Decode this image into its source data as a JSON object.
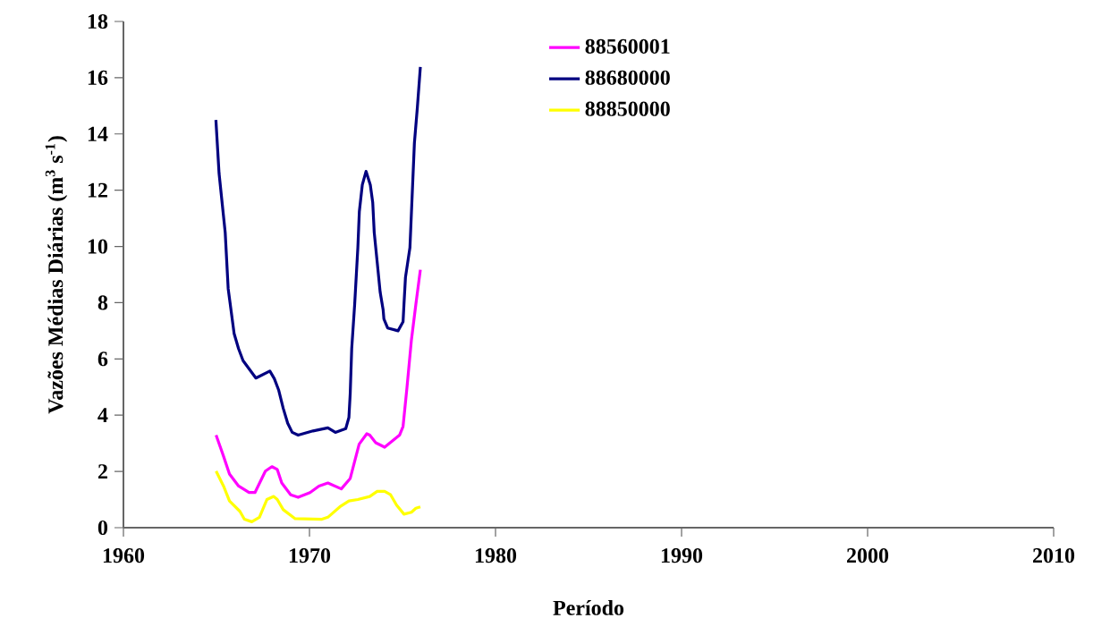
{
  "chart_data": {
    "type": "line",
    "xlabel": "Período",
    "ylabel": "Vazões Médias Diárias (m$^{3}$ s$^{-1}$)",
    "xlim": [
      1960,
      2010
    ],
    "xticks": [
      1960,
      1970,
      1980,
      1990,
      2000,
      2010
    ],
    "ylim": [
      0,
      18
    ],
    "yticks": [
      0,
      2,
      4,
      6,
      8,
      10,
      12,
      14,
      16,
      18
    ],
    "grid": false,
    "legend": "top",
    "marker": "none",
    "line_style": "solid",
    "series": [
      {
        "name": "88560001",
        "color": "#ff00ff",
        "x": [
          1964.98,
          1965.38,
          1965.7,
          1966.19,
          1966.75,
          1967.07,
          1967.63,
          1967.98,
          1968.27,
          1968.51,
          1968.99,
          1969.39,
          1970.03,
          1970.51,
          1970.99,
          1971.71,
          1972.19,
          1972.67,
          1973.08,
          1973.24,
          1973.56,
          1974.04,
          1974.84,
          1975.03,
          1975.24,
          1975.48,
          1975.72,
          1975.96
        ],
        "values": [
          3.29,
          2.54,
          1.91,
          1.48,
          1.25,
          1.25,
          2.01,
          2.17,
          2.07,
          1.59,
          1.17,
          1.08,
          1.25,
          1.48,
          1.59,
          1.38,
          1.75,
          2.97,
          3.34,
          3.29,
          3.02,
          2.86,
          3.29,
          3.6,
          4.98,
          6.68,
          7.95,
          9.17
        ]
      },
      {
        "name": "88680000",
        "color": "#000080",
        "x": [
          1964.97,
          1965.14,
          1965.47,
          1965.63,
          1965.87,
          1965.95,
          1966.19,
          1966.43,
          1967.12,
          1967.87,
          1968.11,
          1968.35,
          1968.59,
          1968.83,
          1969.07,
          1969.39,
          1970.19,
          1970.99,
          1971.39,
          1971.95,
          1972.12,
          1972.19,
          1972.27,
          1972.43,
          1972.6,
          1972.68,
          1972.84,
          1973.04,
          1973.27,
          1973.4,
          1973.48,
          1973.64,
          1973.8,
          1973.96,
          1974.0,
          1974.2,
          1974.76,
          1975.03,
          1975.08,
          1975.16,
          1975.4,
          1975.64,
          1975.8,
          1975.96
        ],
        "values": [
          14.5,
          12.6,
          10.5,
          8.5,
          7.3,
          6.9,
          6.36,
          5.94,
          5.32,
          5.57,
          5.3,
          4.88,
          4.24,
          3.71,
          3.39,
          3.29,
          3.44,
          3.55,
          3.39,
          3.52,
          3.92,
          4.77,
          6.36,
          7.95,
          9.96,
          11.24,
          12.19,
          12.67,
          12.19,
          11.56,
          10.5,
          9.44,
          8.37,
          7.74,
          7.42,
          7.1,
          7.0,
          7.32,
          7.95,
          8.9,
          9.96,
          13.68,
          14.95,
          16.38
        ]
      },
      {
        "name": "88850000",
        "color": "#ffff00",
        "x": [
          1964.98,
          1965.38,
          1965.7,
          1966.26,
          1966.5,
          1966.9,
          1967.31,
          1967.71,
          1968.08,
          1968.27,
          1968.59,
          1969.23,
          1970.67,
          1970.99,
          1971.63,
          1972.12,
          1972.6,
          1973.24,
          1973.64,
          1974.04,
          1974.36,
          1974.68,
          1975.08,
          1975.48,
          1975.72,
          1975.96
        ],
        "values": [
          2.01,
          1.48,
          0.95,
          0.58,
          0.3,
          0.21,
          0.37,
          1.0,
          1.11,
          1.0,
          0.64,
          0.32,
          0.3,
          0.37,
          0.74,
          0.95,
          1.0,
          1.11,
          1.29,
          1.29,
          1.17,
          0.8,
          0.48,
          0.55,
          0.69,
          0.74
        ]
      }
    ]
  }
}
